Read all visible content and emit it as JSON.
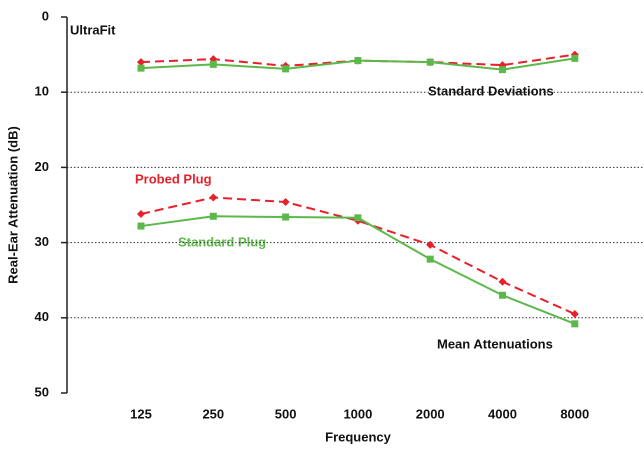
{
  "chart_data": {
    "type": "line",
    "title": "UltraFit",
    "xlabel": "Frequency",
    "ylabel": "Real-Ear Attenuation (dB)",
    "categories": [
      "125",
      "250",
      "500",
      "1000",
      "2000",
      "4000",
      "8000"
    ],
    "series": [
      {
        "name": "Probed Plug",
        "color": "#e8202a",
        "dashed": true,
        "marker": "diamond",
        "values": [
          26.2,
          24.0,
          24.6,
          27.1,
          30.3,
          35.2,
          39.5
        ]
      },
      {
        "name": "Standard Plug",
        "color": "#5cb84a",
        "dashed": false,
        "marker": "square",
        "values": [
          27.8,
          26.5,
          26.6,
          26.7,
          32.2,
          37.0,
          40.8
        ]
      },
      {
        "color": "#e8202a",
        "dashed": true,
        "marker": "diamond",
        "values": [
          6.0,
          5.6,
          6.5,
          5.8,
          6.0,
          6.4,
          5.0
        ]
      },
      {
        "color": "#5cb84a",
        "dashed": false,
        "marker": "square",
        "values": [
          6.8,
          6.3,
          6.9,
          5.8,
          6.0,
          7.0,
          5.5
        ]
      }
    ],
    "annotations": [
      "Standard Deviations",
      "Mean Attenuations"
    ],
    "ylim": [
      0,
      50
    ],
    "yticks": [
      0,
      10,
      20,
      30,
      40,
      50
    ],
    "y_inverted": true,
    "grid": true
  }
}
